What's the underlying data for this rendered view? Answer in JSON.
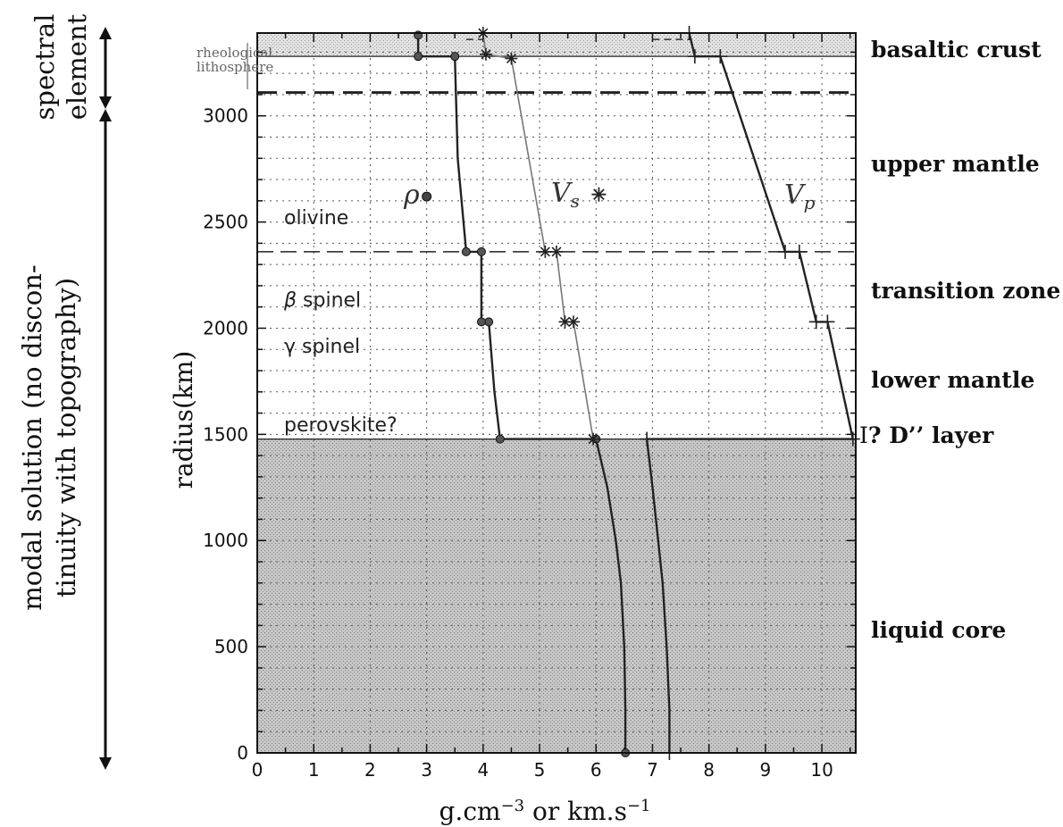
{
  "chart_data": {
    "type": "line",
    "title": "",
    "xlabel_main": "g.cm",
    "xlabel_sup1": "−3",
    "xlabel_mid": " or km.s",
    "xlabel_sup2": "−1",
    "ylabel": "radius(km)",
    "xlim": [
      0,
      10.6
    ],
    "ylim": [
      0,
      3390
    ],
    "x_ticks": [
      "0",
      "1",
      "2",
      "3",
      "4",
      "5",
      "6",
      "7",
      "8",
      "9",
      "10"
    ],
    "x_tick_values": [
      0,
      1,
      2,
      3,
      4,
      5,
      6,
      7,
      8,
      9,
      10
    ],
    "y_ticks": [
      "0",
      "500",
      "1000",
      "1500",
      "2000",
      "2500",
      "3000"
    ],
    "y_tick_values": [
      0,
      500,
      1000,
      1500,
      2000,
      2500,
      3000
    ],
    "grid": true,
    "series": [
      {
        "name": "ρ",
        "points": [
          [
            6.52,
            0
          ],
          [
            6.52,
            200
          ],
          [
            6.5,
            500
          ],
          [
            6.44,
            800
          ],
          [
            6.35,
            1000
          ],
          [
            6.2,
            1250
          ],
          [
            6.0,
            1478
          ],
          [
            4.3,
            1478
          ],
          [
            4.2,
            1700
          ],
          [
            4.1,
            2030
          ],
          [
            3.97,
            2030
          ],
          [
            3.97,
            2360
          ],
          [
            3.7,
            2360
          ],
          [
            3.55,
            2800
          ],
          [
            3.5,
            3280
          ],
          [
            2.85,
            3280
          ],
          [
            2.85,
            3380
          ]
        ],
        "markers": [
          [
            6.52,
            0
          ],
          [
            6.0,
            1478
          ],
          [
            4.3,
            1478
          ],
          [
            4.1,
            2030
          ],
          [
            3.97,
            2030
          ],
          [
            3.97,
            2360
          ],
          [
            3.7,
            2360
          ],
          [
            3.5,
            3280
          ],
          [
            2.85,
            3280
          ],
          [
            2.85,
            3380
          ]
        ]
      },
      {
        "name": "Vs",
        "points": [
          [
            5.95,
            1478
          ],
          [
            5.6,
            2030
          ],
          [
            5.45,
            2030
          ],
          [
            5.3,
            2360
          ],
          [
            5.1,
            2360
          ],
          [
            4.5,
            3270
          ],
          [
            4.05,
            3290
          ],
          [
            4.0,
            3390
          ]
        ],
        "markers": [
          [
            5.95,
            1478
          ],
          [
            5.6,
            2030
          ],
          [
            5.45,
            2030
          ],
          [
            5.3,
            2360
          ],
          [
            5.1,
            2360
          ],
          [
            4.5,
            3270
          ],
          [
            4.05,
            3290
          ],
          [
            4.0,
            3390
          ]
        ]
      },
      {
        "name": "Vp",
        "points": [
          [
            7.3,
            0
          ],
          [
            7.3,
            200
          ],
          [
            7.25,
            500
          ],
          [
            7.18,
            800
          ],
          [
            7.1,
            1000
          ],
          [
            7.0,
            1250
          ],
          [
            6.9,
            1478
          ],
          [
            10.55,
            1478
          ],
          [
            10.1,
            2030
          ],
          [
            9.9,
            2030
          ],
          [
            9.6,
            2360
          ],
          [
            9.35,
            2360
          ],
          [
            8.2,
            3280
          ],
          [
            7.75,
            3280
          ],
          [
            7.65,
            3390
          ]
        ],
        "markers": [
          [
            7.3,
            0
          ],
          [
            6.9,
            1478
          ],
          [
            10.55,
            1478
          ],
          [
            10.1,
            2030
          ],
          [
            9.9,
            2030
          ],
          [
            9.6,
            2360
          ],
          [
            9.35,
            2360
          ],
          [
            8.2,
            3280
          ],
          [
            7.75,
            3280
          ],
          [
            7.65,
            3390
          ]
        ]
      }
    ],
    "discontinuities_km": [
      1478,
      2030,
      2360,
      3110,
      3280
    ],
    "dashed_top_segment": [
      [
        7.0,
        3360
      ],
      [
        7.7,
        3360
      ]
    ],
    "dashed_top_segment2": [
      [
        3.7,
        3360
      ],
      [
        4.0,
        3360
      ]
    ],
    "legend_markers": [
      {
        "series": "ρ",
        "x": 3.0,
        "y": 2620
      },
      {
        "series": "Vs",
        "x": 6.05,
        "y": 2630
      }
    ]
  },
  "labels": {
    "rho": "ρ",
    "vs_main": "V",
    "vs_sub": "s",
    "vp_main": "V",
    "vp_sub": "p",
    "rheological": "rheological",
    "lithosphere": "lithosphere",
    "olivine": "olivine",
    "beta": "β",
    "beta_spinel": " spinel",
    "gamma_spinel": "γ spinel",
    "perovskite": "perovskite?",
    "d_layer_bracket": "I",
    "d_layer": "? D’’ layer"
  },
  "zones": {
    "basaltic_crust": "basaltic crust",
    "upper_mantle": "upper mantle",
    "transition_zone": "transition zone",
    "lower_mantle": "lower mantle",
    "liquid_core": "liquid core"
  },
  "side": {
    "spectral_line1": "spectral",
    "spectral_line2": "element",
    "modal_line1": "modal solution (no discon-",
    "modal_line2": "tinuity with topography)"
  },
  "colors": {
    "core_fill": "#bdbdbd",
    "crust_fill": "#d9d9d9",
    "line": "#222222",
    "vs_line": "#777777",
    "grid": "#555555"
  }
}
